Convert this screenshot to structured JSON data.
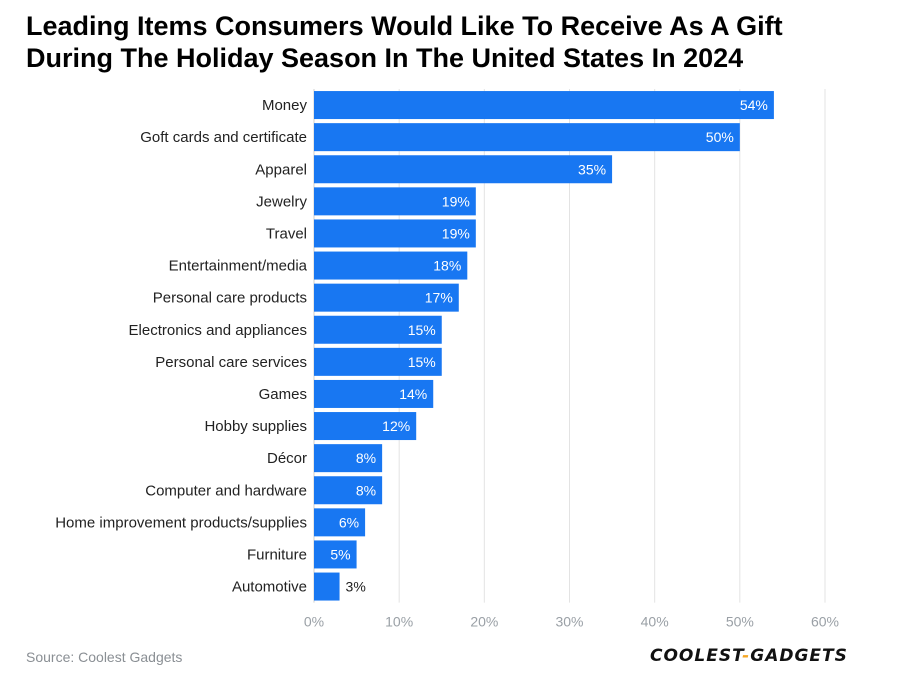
{
  "title_lines": [
    "Leading Items Consumers Would Like To Receive As A Gift",
    "During The Holiday Season In The United States In 2024"
  ],
  "source": "Source: Coolest Gadgets",
  "brand": {
    "left": "COOLEST",
    "sep": "-",
    "right": "GADGETS"
  },
  "colors": {
    "bar": "#1877f2",
    "grid": "#e3e3e3",
    "label_inside": "#ffffff",
    "label_outside": "#222222"
  },
  "chart_data": {
    "type": "bar",
    "orientation": "horizontal",
    "categories": [
      "Money",
      "Goft cards and certificate",
      "Apparel",
      "Jewelry",
      "Travel",
      "Entertainment/media",
      "Personal care products",
      "Electronics and appliances",
      "Personal care services",
      "Games",
      "Hobby supplies",
      "Décor",
      "Computer and hardware",
      "Home improvement products/supplies",
      "Furniture",
      "Automotive"
    ],
    "values": [
      54,
      50,
      35,
      19,
      19,
      18,
      17,
      15,
      15,
      14,
      12,
      8,
      8,
      6,
      5,
      3
    ],
    "value_labels": [
      "54%",
      "50%",
      "35%",
      "19%",
      "19%",
      "18%",
      "17%",
      "15%",
      "15%",
      "14%",
      "12%",
      "8%",
      "8%",
      "6%",
      "5%",
      "3%"
    ],
    "xlim": [
      0,
      60
    ],
    "xticks": [
      0,
      10,
      20,
      30,
      40,
      50,
      60
    ],
    "xtick_labels": [
      "0%",
      "10%",
      "20%",
      "30%",
      "40%",
      "50%",
      "60%"
    ],
    "grid": true,
    "legend": "none"
  }
}
